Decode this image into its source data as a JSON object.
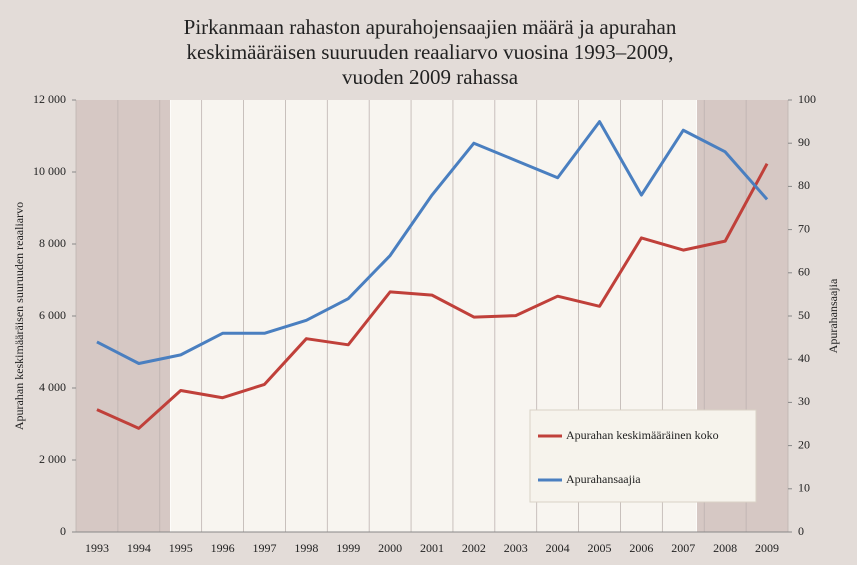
{
  "chart_data": {
    "type": "line",
    "title": [
      "Pirkanmaan rahaston apurahojensaajien määrä ja apurahan",
      "keskimääräisen suuruuden reaaliarvo vuosina 1993–2009,",
      "vuoden 2009 rahassa"
    ],
    "ylabel": "Apurahan keskimääräisen suuruuden reaaliarvo",
    "y2label": "Apurahansaajia",
    "categories": [
      "1993",
      "1994",
      "1995",
      "1996",
      "1997",
      "1998",
      "1999",
      "2000",
      "2001",
      "2002",
      "2003",
      "2004",
      "2005",
      "2006",
      "2007",
      "2008",
      "2009"
    ],
    "series": [
      {
        "name": "Apurahan keskimääräinen koko",
        "color": "#c0403a",
        "values": [
          3400,
          2880,
          3930,
          3730,
          4100,
          5370,
          5200,
          6670,
          6580,
          5970,
          6010,
          6550,
          6270,
          8170,
          7830,
          8080,
          10230
        ]
      },
      {
        "name": "Apurahansaajia",
        "color": "#4a7fc0",
        "axis": "y2",
        "values": [
          44,
          39,
          41,
          46,
          46,
          49,
          54,
          64,
          78,
          90,
          86,
          82,
          95,
          78,
          93,
          88,
          77
        ]
      }
    ],
    "ylim": [
      0,
      12000
    ],
    "yticks": [
      0,
      {
        "value": 2000,
        "label": "2 000"
      },
      {
        "value": 4000,
        "label": "4 000"
      },
      {
        "value": 6000,
        "label": "6 000"
      },
      {
        "value": 8000,
        "label": "8 000"
      },
      {
        "value": 10000,
        "label": "10 000"
      },
      {
        "value": 12000,
        "label": "12 000"
      }
    ],
    "y2lim": [
      0,
      100
    ],
    "y2ticks": [
      0,
      10,
      20,
      30,
      40,
      50,
      60,
      70,
      80,
      90,
      100
    ],
    "legend": "lower right",
    "grid": true
  }
}
